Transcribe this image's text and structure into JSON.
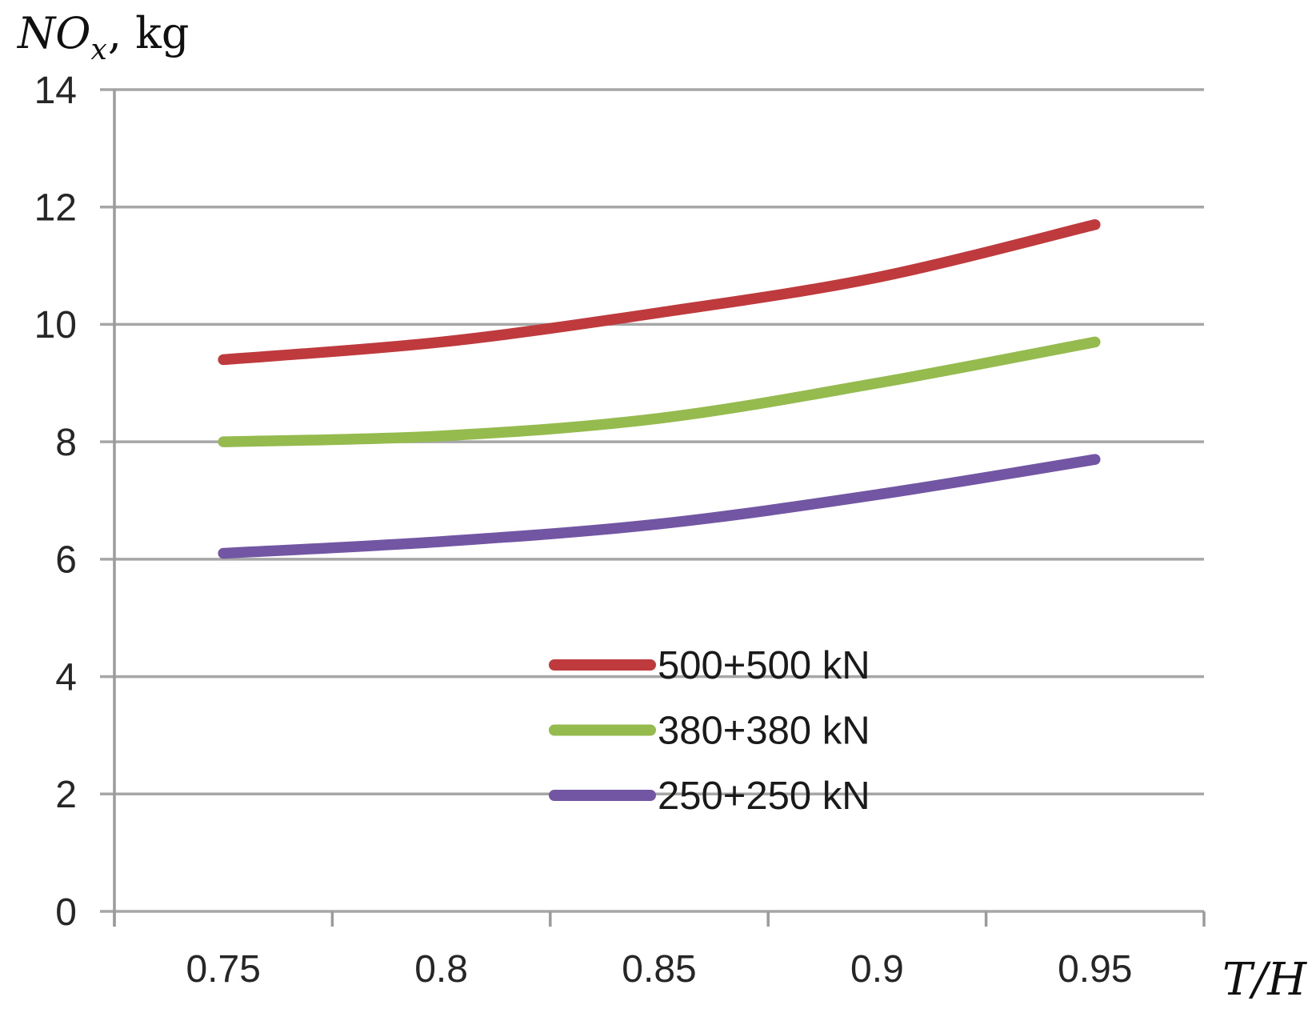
{
  "chart_data": {
    "type": "line",
    "title": "",
    "xlabel": "T/H",
    "ylabel": "NOx, kg",
    "ylabel_parts": {
      "prefix": "NO",
      "sub": "x",
      "suffix": ", kg"
    },
    "x": [
      0.75,
      0.8,
      0.85,
      0.9,
      0.95
    ],
    "x_tick_labels": [
      "0.75",
      "0.8",
      "0.85",
      "0.9",
      "0.95"
    ],
    "y_ticks": [
      0,
      2,
      4,
      6,
      8,
      10,
      12,
      14
    ],
    "y_tick_labels": [
      "0",
      "2",
      "4",
      "6",
      "8",
      "10",
      "12",
      "14"
    ],
    "ylim": [
      0,
      14
    ],
    "grid": "horizontal",
    "legend_position": "inside-lower-center",
    "series": [
      {
        "name": "500+500 kN",
        "color": "#be3a3c",
        "values": [
          9.4,
          9.7,
          10.2,
          10.8,
          11.7
        ]
      },
      {
        "name": "380+380 kN",
        "color": "#95ba4e",
        "values": [
          8.0,
          8.1,
          8.4,
          9.0,
          9.7
        ]
      },
      {
        "name": "250+250 kN",
        "color": "#7256a3",
        "values": [
          6.1,
          6.3,
          6.6,
          7.1,
          7.7
        ]
      }
    ]
  },
  "colors": {
    "gridline": "#a6a6a6",
    "axis": "#9b9b9b",
    "tick_label": "#262626",
    "legend_text": "#1a1a1a",
    "background": "#ffffff"
  }
}
